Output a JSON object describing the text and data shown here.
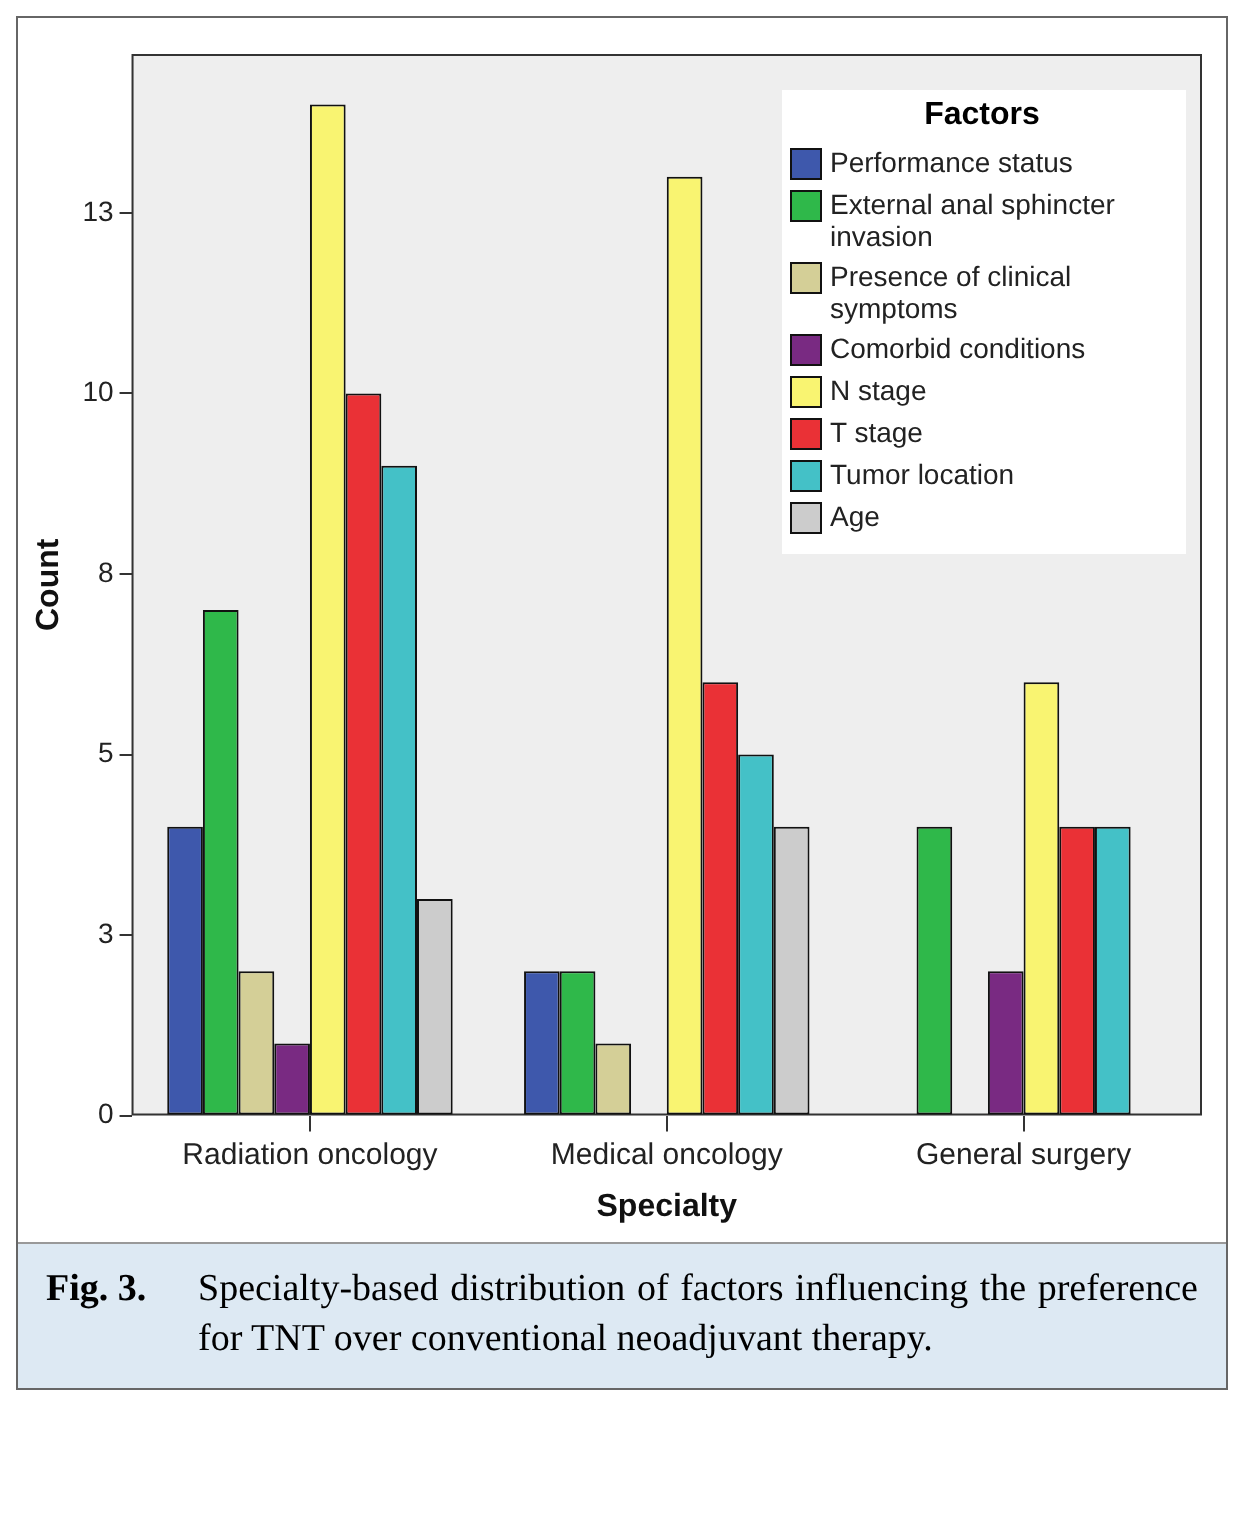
{
  "chart_data": {
    "type": "bar",
    "xlabel": "Specialty",
    "ylabel": "Count",
    "legend_title": "Factors",
    "legend": "top right",
    "grid": false,
    "categories": [
      "Radiation oncology",
      "Medical oncology",
      "General surgery"
    ],
    "series": [
      {
        "name": "Performance status",
        "color": "#3e58ac",
        "values": [
          4,
          2,
          0
        ]
      },
      {
        "name": "External anal sphincter invasion",
        "color": "#2fb84a",
        "values": [
          7,
          2,
          4
        ]
      },
      {
        "name": "Presence of clinical symptoms",
        "color": "#d4cf97",
        "values": [
          2,
          1,
          0
        ]
      },
      {
        "name": "Comorbid conditions",
        "color": "#792a82",
        "values": [
          1,
          0,
          2
        ]
      },
      {
        "name": "N stage",
        "color": "#f9f471",
        "values": [
          14,
          13,
          6
        ]
      },
      {
        "name": "T stage",
        "color": "#ea3136",
        "values": [
          10,
          6,
          4
        ]
      },
      {
        "name": "Tumor location",
        "color": "#44c1c7",
        "values": [
          9,
          5,
          4
        ]
      },
      {
        "name": "Age",
        "color": "#cccccc",
        "values": [
          3,
          4,
          0
        ]
      }
    ],
    "ylim": [
      0,
      14.7
    ],
    "yticks": [
      0,
      {
        "value": 2.5,
        "label": "3"
      },
      5,
      {
        "value": 7.5,
        "label": "8"
      },
      10,
      {
        "value": 12.5,
        "label": "13"
      }
    ],
    "annotations": [
      "Fig. 3.",
      "Specialty-based distribution of factors influencing the preference for TNT over conventional neoadjuvant therapy."
    ]
  }
}
